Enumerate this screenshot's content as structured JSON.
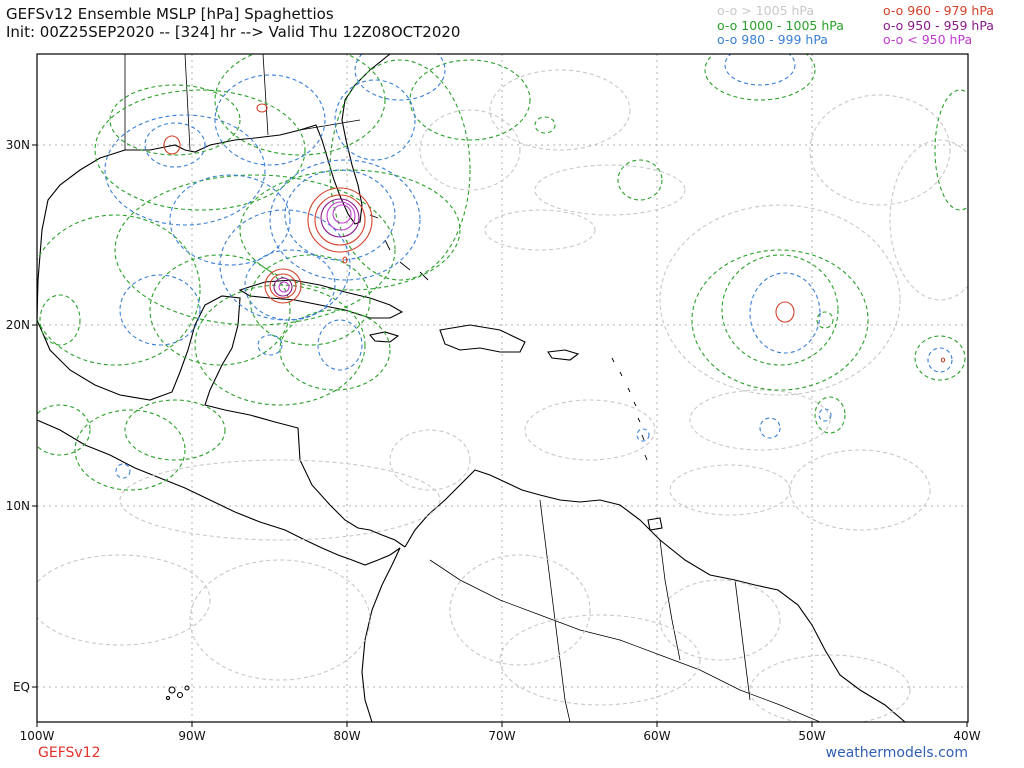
{
  "title": {
    "line1": "GEFSv12 Ensemble MSLP [hPa] Spaghettios",
    "line2": "Init: 00Z25SEP2020 -- [324] hr --> Valid Thu 12Z08OCT2020"
  },
  "legend": {
    "left": [
      {
        "marker": "o-o",
        "label": "> 1005 hPa",
        "color": "#c8c8c8"
      },
      {
        "marker": "o-o",
        "label": "1000 - 1005 hPa",
        "color": "#2aa02a"
      },
      {
        "marker": "o-o",
        "label": "980 - 999 hPa",
        "color": "#3a7fd5"
      }
    ],
    "right": [
      {
        "marker": "o-o",
        "label": "960 - 979 hPa",
        "color": "#d4402a"
      },
      {
        "marker": "o-o",
        "label": "950 - 959 hPa",
        "color": "#8a1a8a"
      },
      {
        "marker": "o-o",
        "label": "< 950 hPa",
        "color": "#c03ad0"
      }
    ]
  },
  "axes": {
    "lat_labels": [
      "30N",
      "20N",
      "10N",
      "EQ"
    ],
    "lon_labels": [
      "100W",
      "90W",
      "80W",
      "70W",
      "60W",
      "50W",
      "40W"
    ]
  },
  "footer": {
    "left": "GEFSv12",
    "right": "weathermodels.com"
  },
  "colors": {
    "gray": "#c8c8c8",
    "green": "#2aa02a",
    "blue": "#3a7fd5",
    "red": "#d4402a",
    "purple": "#8a1a8a",
    "magenta": "#c03ad0"
  }
}
